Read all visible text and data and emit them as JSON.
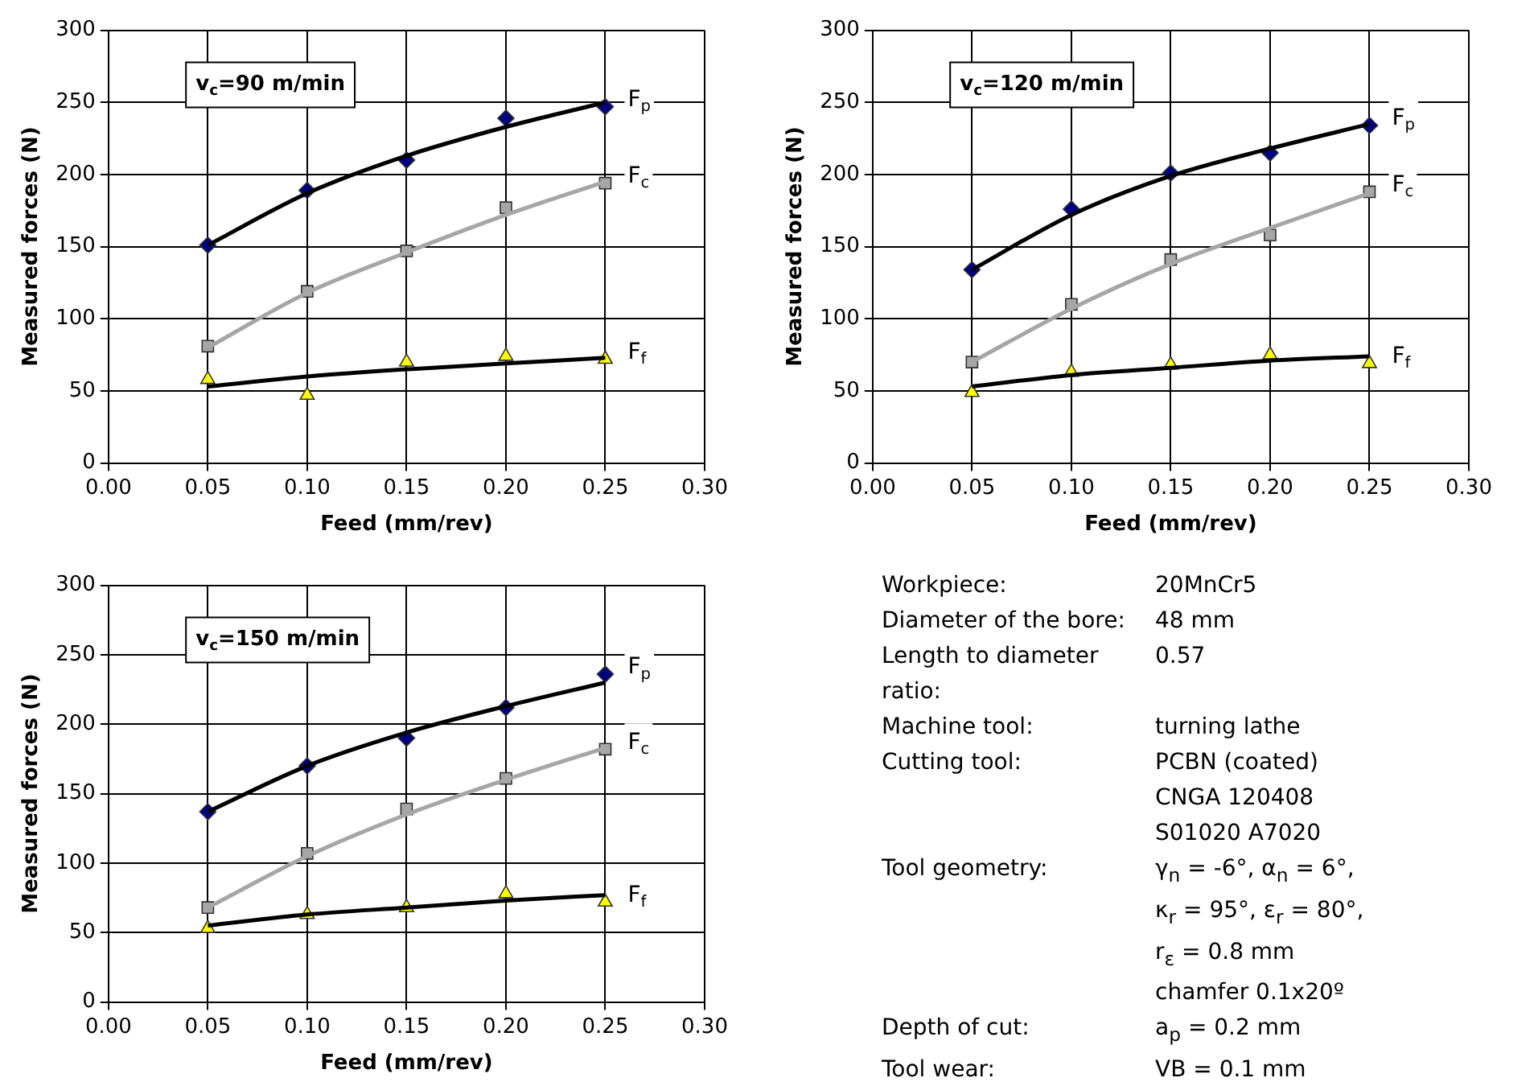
{
  "chart_data": [
    {
      "type": "line",
      "xlabel": "Feed (mm/rev)",
      "ylabel": "Measured forces (N)",
      "annotations": [
        "v$_{c}$=90 m/min"
      ],
      "x": [
        0.05,
        0.1,
        0.15,
        0.2,
        0.25
      ],
      "xlim": [
        0,
        0.3
      ],
      "xticks": [
        {
          "value": 0,
          "label": "0.00"
        },
        {
          "value": 0.05,
          "label": "0.05"
        },
        {
          "value": 0.1,
          "label": "0.10"
        },
        {
          "value": 0.15,
          "label": "0.15"
        },
        {
          "value": 0.2,
          "label": "0.20"
        },
        {
          "value": 0.25,
          "label": "0.25"
        },
        {
          "value": 0.3,
          "label": "0.30"
        }
      ],
      "ylim": [
        0,
        300
      ],
      "yticks": [
        0,
        50,
        100,
        150,
        200,
        250,
        300
      ],
      "grid": true,
      "legend": false,
      "series": [
        {
          "type": "line",
          "color": "#000000",
          "marker": "none",
          "values": [
            151,
            187,
            213,
            233,
            250
          ]
        },
        {
          "type": "line",
          "color": "#a6a6a6",
          "marker": "none",
          "values": [
            80,
            118,
            146,
            172,
            195
          ]
        },
        {
          "type": "line",
          "color": "#000000",
          "marker": "none",
          "values": [
            53,
            60,
            65,
            69,
            73
          ]
        },
        {
          "type": "scatter",
          "name": "F$_{p}$",
          "color": "#000080",
          "marker": "diamond",
          "values": [
            151,
            189,
            210,
            239,
            247
          ]
        },
        {
          "type": "scatter",
          "name": "F$_{c}$",
          "color": "#a6a6a6",
          "marker": "square",
          "values": [
            81,
            119,
            147,
            177,
            194
          ]
        },
        {
          "type": "scatter",
          "name": "F$_{f}$",
          "color": "#ffff00",
          "marker": "triangle",
          "values": [
            58,
            47,
            70,
            74,
            72
          ]
        }
      ]
    },
    {
      "type": "line",
      "xlabel": "Feed (mm/rev)",
      "ylabel": "Measured forces (N)",
      "annotations": [
        "v$_{c}$=120 m/min"
      ],
      "x": [
        0.05,
        0.1,
        0.15,
        0.2,
        0.25
      ],
      "xlim": [
        0,
        0.3
      ],
      "xticks": [
        {
          "value": 0,
          "label": "0.00"
        },
        {
          "value": 0.05,
          "label": "0.05"
        },
        {
          "value": 0.1,
          "label": "0.10"
        },
        {
          "value": 0.15,
          "label": "0.15"
        },
        {
          "value": 0.2,
          "label": "0.20"
        },
        {
          "value": 0.25,
          "label": "0.25"
        },
        {
          "value": 0.3,
          "label": "0.30"
        }
      ],
      "ylim": [
        0,
        300
      ],
      "yticks": [
        0,
        50,
        100,
        150,
        200,
        250,
        300
      ],
      "grid": true,
      "legend": false,
      "series": [
        {
          "type": "line",
          "color": "#000000",
          "marker": "none",
          "values": [
            134,
            172,
            199,
            218,
            235
          ]
        },
        {
          "type": "line",
          "color": "#a6a6a6",
          "marker": "none",
          "values": [
            70,
            107,
            138,
            163,
            187
          ]
        },
        {
          "type": "line",
          "color": "#000000",
          "marker": "none",
          "values": [
            53,
            61,
            66,
            71,
            74
          ]
        },
        {
          "type": "scatter",
          "name": "F$_{p}$",
          "color": "#000080",
          "marker": "diamond",
          "values": [
            134,
            176,
            201,
            215,
            234
          ]
        },
        {
          "type": "scatter",
          "name": "F$_{c}$",
          "color": "#a6a6a6",
          "marker": "square",
          "values": [
            70,
            110,
            141,
            158,
            188
          ]
        },
        {
          "type": "scatter",
          "name": "F$_{f}$",
          "color": "#ffff00",
          "marker": "triangle",
          "values": [
            49,
            63,
            68,
            75,
            69
          ]
        }
      ]
    },
    {
      "type": "line",
      "xlabel": "Feed (mm/rev)",
      "ylabel": "Measured forces (N)",
      "annotations": [
        "v$_{c}$=150 m/min"
      ],
      "x": [
        0.05,
        0.1,
        0.15,
        0.2,
        0.25
      ],
      "xlim": [
        0,
        0.3
      ],
      "xticks": [
        {
          "value": 0,
          "label": "0.00"
        },
        {
          "value": 0.05,
          "label": "0.05"
        },
        {
          "value": 0.1,
          "label": "0.10"
        },
        {
          "value": 0.15,
          "label": "0.15"
        },
        {
          "value": 0.2,
          "label": "0.20"
        },
        {
          "value": 0.25,
          "label": "0.25"
        },
        {
          "value": 0.3,
          "label": "0.30"
        }
      ],
      "ylim": [
        0,
        300
      ],
      "yticks": [
        0,
        50,
        100,
        150,
        200,
        250,
        300
      ],
      "grid": true,
      "legend": false,
      "series": [
        {
          "type": "line",
          "color": "#000000",
          "marker": "none",
          "values": [
            137,
            170,
            194,
            213,
            230
          ]
        },
        {
          "type": "line",
          "color": "#a6a6a6",
          "marker": "none",
          "values": [
            68,
            105,
            135,
            160,
            183
          ]
        },
        {
          "type": "line",
          "color": "#000000",
          "marker": "none",
          "values": [
            55,
            63,
            68,
            73,
            77
          ]
        },
        {
          "type": "scatter",
          "name": "F$_{p}$",
          "color": "#000080",
          "marker": "diamond",
          "values": [
            137,
            170,
            190,
            212,
            236
          ]
        },
        {
          "type": "scatter",
          "name": "F$_{c}$",
          "color": "#a6a6a6",
          "marker": "square",
          "values": [
            68,
            107,
            139,
            161,
            182
          ]
        },
        {
          "type": "scatter",
          "name": "F$_{f}$",
          "color": "#ffff00",
          "marker": "triangle",
          "values": [
            53,
            63,
            68,
            78,
            72
          ]
        }
      ]
    },
    {
      "type": "other",
      "annotations": [
        "Workpiece:",
        "20MnCr5",
        "Diameter of the bore:",
        "48 mm",
        "Length to diameter ratio:",
        "0.57",
        "Machine tool:",
        "turning lathe",
        "Cutting tool:",
        "PCBN (coated)\nCNGA 120408\nS01020 A7020",
        "Tool geometry:",
        "γ$_{n}$ = -6°, α$_{n}$ = 6°,\nκ$_{r}$ = 95°, ε$_{r}$ = 80°,\nr$_{ε}$ = 0.8 mm\nchamfer 0.1x20º",
        "Depth of cut:",
        "a$_{p}$ = 0.2 mm",
        "Tool wear:",
        "VB = 0.1 mm"
      ]
    }
  ]
}
